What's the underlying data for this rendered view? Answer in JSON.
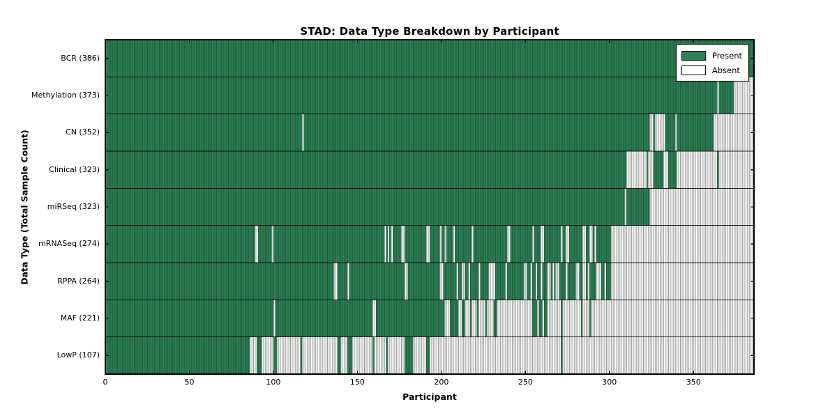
{
  "title": "STAD: Data Type Breakdown by Participant",
  "chart_data": {
    "type": "heatmap",
    "title": "STAD: Data Type Breakdown by Participant",
    "xlabel": "Participant",
    "ylabel": "Data Type (Total Sample Count)",
    "xlim": [
      0,
      386
    ],
    "x_ticks": [
      0,
      50,
      100,
      150,
      200,
      250,
      300,
      350
    ],
    "n_participants": 386,
    "grid": false,
    "tick_direction": "in",
    "legend": {
      "position": "upper right",
      "entries": [
        {
          "label": "Present",
          "color": "#2e8155"
        },
        {
          "label": "Absent",
          "color": "#ffffff"
        }
      ]
    },
    "colors": {
      "present_fill": "#2e8155",
      "present_line": "#1d5c3b",
      "absent_fill": "#fcfcfc",
      "absent_line": "#9b9b9b",
      "separator": "#000000",
      "border": "#000000"
    },
    "rows": [
      {
        "label": "BCR (386)",
        "data_type": "BCR",
        "total": 386,
        "present_runs": [
          [
            0,
            386
          ]
        ]
      },
      {
        "label": "Methylation (373)",
        "data_type": "Methylation",
        "total": 373,
        "present_runs": [
          [
            0,
            364
          ],
          [
            365,
            374
          ]
        ]
      },
      {
        "label": "CN (352)",
        "data_type": "CN",
        "total": 352,
        "present_runs": [
          [
            0,
            117
          ],
          [
            118,
            324
          ],
          [
            326,
            327
          ],
          [
            333,
            339
          ],
          [
            340,
            362
          ]
        ]
      },
      {
        "label": "Clinical (323)",
        "data_type": "Clinical",
        "total": 323,
        "present_runs": [
          [
            0,
            310
          ],
          [
            322,
            323
          ],
          [
            326,
            332
          ],
          [
            335,
            340
          ],
          [
            364,
            365
          ]
        ]
      },
      {
        "label": "miRSeq (323)",
        "data_type": "miRSeq",
        "total": 323,
        "present_runs": [
          [
            0,
            309
          ],
          [
            310,
            324
          ]
        ]
      },
      {
        "label": "mRNASeq (274)",
        "data_type": "mRNASeq",
        "total": 274,
        "present_runs": [
          [
            0,
            89
          ],
          [
            91,
            99
          ],
          [
            100,
            166
          ],
          [
            167,
            168
          ],
          [
            169,
            170
          ],
          [
            171,
            176
          ],
          [
            178,
            191
          ],
          [
            193,
            199
          ],
          [
            200,
            202
          ],
          [
            203,
            207
          ],
          [
            208,
            218
          ],
          [
            219,
            239
          ],
          [
            241,
            254
          ],
          [
            255,
            259
          ],
          [
            261,
            271
          ],
          [
            272,
            274
          ],
          [
            276,
            284
          ],
          [
            286,
            288
          ],
          [
            290,
            291
          ],
          [
            292,
            301
          ]
        ]
      },
      {
        "label": "RPPA (264)",
        "data_type": "RPPA",
        "total": 264,
        "present_runs": [
          [
            0,
            136
          ],
          [
            138,
            144
          ],
          [
            145,
            178
          ],
          [
            180,
            199
          ],
          [
            201,
            209
          ],
          [
            210,
            212
          ],
          [
            214,
            216
          ],
          [
            217,
            222
          ],
          [
            223,
            228
          ],
          [
            232,
            238
          ],
          [
            239,
            249
          ],
          [
            251,
            253
          ],
          [
            254,
            256
          ],
          [
            257,
            259
          ],
          [
            260,
            263
          ],
          [
            265,
            266
          ],
          [
            267,
            268
          ],
          [
            270,
            274
          ],
          [
            275,
            280
          ],
          [
            282,
            284
          ],
          [
            286,
            287
          ],
          [
            288,
            292
          ],
          [
            295,
            297
          ],
          [
            298,
            301
          ]
        ]
      },
      {
        "label": "MAF (221)",
        "data_type": "MAF",
        "total": 221,
        "present_runs": [
          [
            0,
            100
          ],
          [
            101,
            159
          ],
          [
            161,
            202
          ],
          [
            205,
            210
          ],
          [
            212,
            214
          ],
          [
            217,
            218
          ],
          [
            221,
            222
          ],
          [
            226,
            227
          ],
          [
            231,
            233
          ],
          [
            254,
            257
          ],
          [
            258,
            260
          ],
          [
            261,
            263
          ],
          [
            271,
            272
          ],
          [
            283,
            284
          ],
          [
            288,
            289
          ]
        ]
      },
      {
        "label": "LowP (107)",
        "data_type": "LowP",
        "total": 107,
        "present_runs": [
          [
            0,
            86
          ],
          [
            90,
            93
          ],
          [
            100,
            102
          ],
          [
            116,
            117
          ],
          [
            138,
            140
          ],
          [
            144,
            147
          ],
          [
            159,
            160
          ],
          [
            167,
            168
          ],
          [
            178,
            183
          ],
          [
            191,
            193
          ],
          [
            271,
            272
          ]
        ]
      }
    ]
  }
}
